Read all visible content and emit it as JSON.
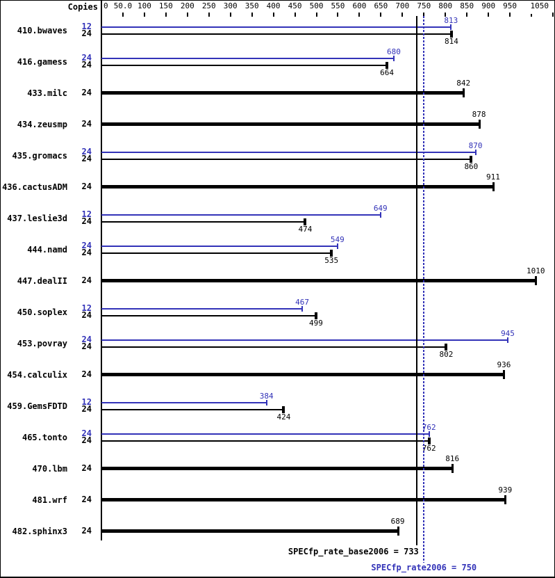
{
  "chart_data": {
    "type": "bar",
    "orientation": "horizontal",
    "title": "",
    "xlabel": "",
    "ylabel": "",
    "grid": false,
    "legend": "none",
    "copies_header": "Copies",
    "xlim": [
      0,
      1050
    ],
    "x_ticks": [
      {
        "value": 0,
        "label": "0"
      },
      {
        "value": 50,
        "label": "50.0"
      },
      {
        "value": 100,
        "label": "100"
      },
      {
        "value": 150,
        "label": "150"
      },
      {
        "value": 200,
        "label": "200"
      },
      {
        "value": 250,
        "label": "250"
      },
      {
        "value": 300,
        "label": "300"
      },
      {
        "value": 350,
        "label": "350"
      },
      {
        "value": 400,
        "label": "400"
      },
      {
        "value": 450,
        "label": "450"
      },
      {
        "value": 500,
        "label": "500"
      },
      {
        "value": 550,
        "label": "550"
      },
      {
        "value": 600,
        "label": "600"
      },
      {
        "value": 650,
        "label": "650"
      },
      {
        "value": 700,
        "label": "700"
      },
      {
        "value": 750,
        "label": "750"
      },
      {
        "value": 800,
        "label": "800"
      },
      {
        "value": 850,
        "label": "850"
      },
      {
        "value": 900,
        "label": "900"
      },
      {
        "value": 950,
        "label": "950"
      },
      {
        "value": 1000,
        "label": ""
      },
      {
        "value": 1050,
        "label": "1050"
      }
    ],
    "benchmarks": [
      {
        "name": "410.bwaves",
        "rows": [
          {
            "series": "peak",
            "copies": "12",
            "value": 813
          },
          {
            "series": "base",
            "copies": "24",
            "value": 814
          }
        ]
      },
      {
        "name": "416.gamess",
        "rows": [
          {
            "series": "peak",
            "copies": "24",
            "value": 680
          },
          {
            "series": "base",
            "copies": "24",
            "value": 664
          }
        ]
      },
      {
        "name": "433.milc",
        "rows": [
          {
            "series": "base-only",
            "copies": "24",
            "value": 842
          }
        ]
      },
      {
        "name": "434.zeusmp",
        "rows": [
          {
            "series": "base-only",
            "copies": "24",
            "value": 878
          }
        ]
      },
      {
        "name": "435.gromacs",
        "rows": [
          {
            "series": "peak",
            "copies": "24",
            "value": 870
          },
          {
            "series": "base",
            "copies": "24",
            "value": 860
          }
        ]
      },
      {
        "name": "436.cactusADM",
        "rows": [
          {
            "series": "base-only",
            "copies": "24",
            "value": 911
          }
        ]
      },
      {
        "name": "437.leslie3d",
        "rows": [
          {
            "series": "peak",
            "copies": "12",
            "value": 649
          },
          {
            "series": "base",
            "copies": "24",
            "value": 474
          }
        ]
      },
      {
        "name": "444.namd",
        "rows": [
          {
            "series": "peak",
            "copies": "24",
            "value": 549
          },
          {
            "series": "base",
            "copies": "24",
            "value": 535
          }
        ]
      },
      {
        "name": "447.dealII",
        "rows": [
          {
            "series": "base-only",
            "copies": "24",
            "value": 1010
          }
        ]
      },
      {
        "name": "450.soplex",
        "rows": [
          {
            "series": "peak",
            "copies": "12",
            "value": 467
          },
          {
            "series": "base",
            "copies": "24",
            "value": 499
          }
        ]
      },
      {
        "name": "453.povray",
        "rows": [
          {
            "series": "peak",
            "copies": "24",
            "value": 945
          },
          {
            "series": "base",
            "copies": "24",
            "value": 802
          }
        ]
      },
      {
        "name": "454.calculix",
        "rows": [
          {
            "series": "base-only",
            "copies": "24",
            "value": 936
          }
        ]
      },
      {
        "name": "459.GemsFDTD",
        "rows": [
          {
            "series": "peak",
            "copies": "12",
            "value": 384
          },
          {
            "series": "base",
            "copies": "24",
            "value": 424
          }
        ]
      },
      {
        "name": "465.tonto",
        "rows": [
          {
            "series": "peak",
            "copies": "24",
            "value": 762
          },
          {
            "series": "base",
            "copies": "24",
            "value": 762
          }
        ]
      },
      {
        "name": "470.lbm",
        "rows": [
          {
            "series": "base-only",
            "copies": "24",
            "value": 816
          }
        ]
      },
      {
        "name": "481.wrf",
        "rows": [
          {
            "series": "base-only",
            "copies": "24",
            "value": 939
          }
        ]
      },
      {
        "name": "482.sphinx3",
        "rows": [
          {
            "series": "base-only",
            "copies": "24",
            "value": 689
          }
        ]
      }
    ],
    "reference_lines": [
      {
        "name": "base",
        "label": "SPECfp_rate_base2006 = 733",
        "value": 733,
        "style": "solid"
      },
      {
        "name": "peak",
        "label": "SPECfp_rate2006 = 750",
        "value": 750,
        "style": "dotted"
      }
    ]
  },
  "colors": {
    "peak": "#3232b8",
    "base": "#000000",
    "background": "#ffffff",
    "border": "#000000"
  }
}
